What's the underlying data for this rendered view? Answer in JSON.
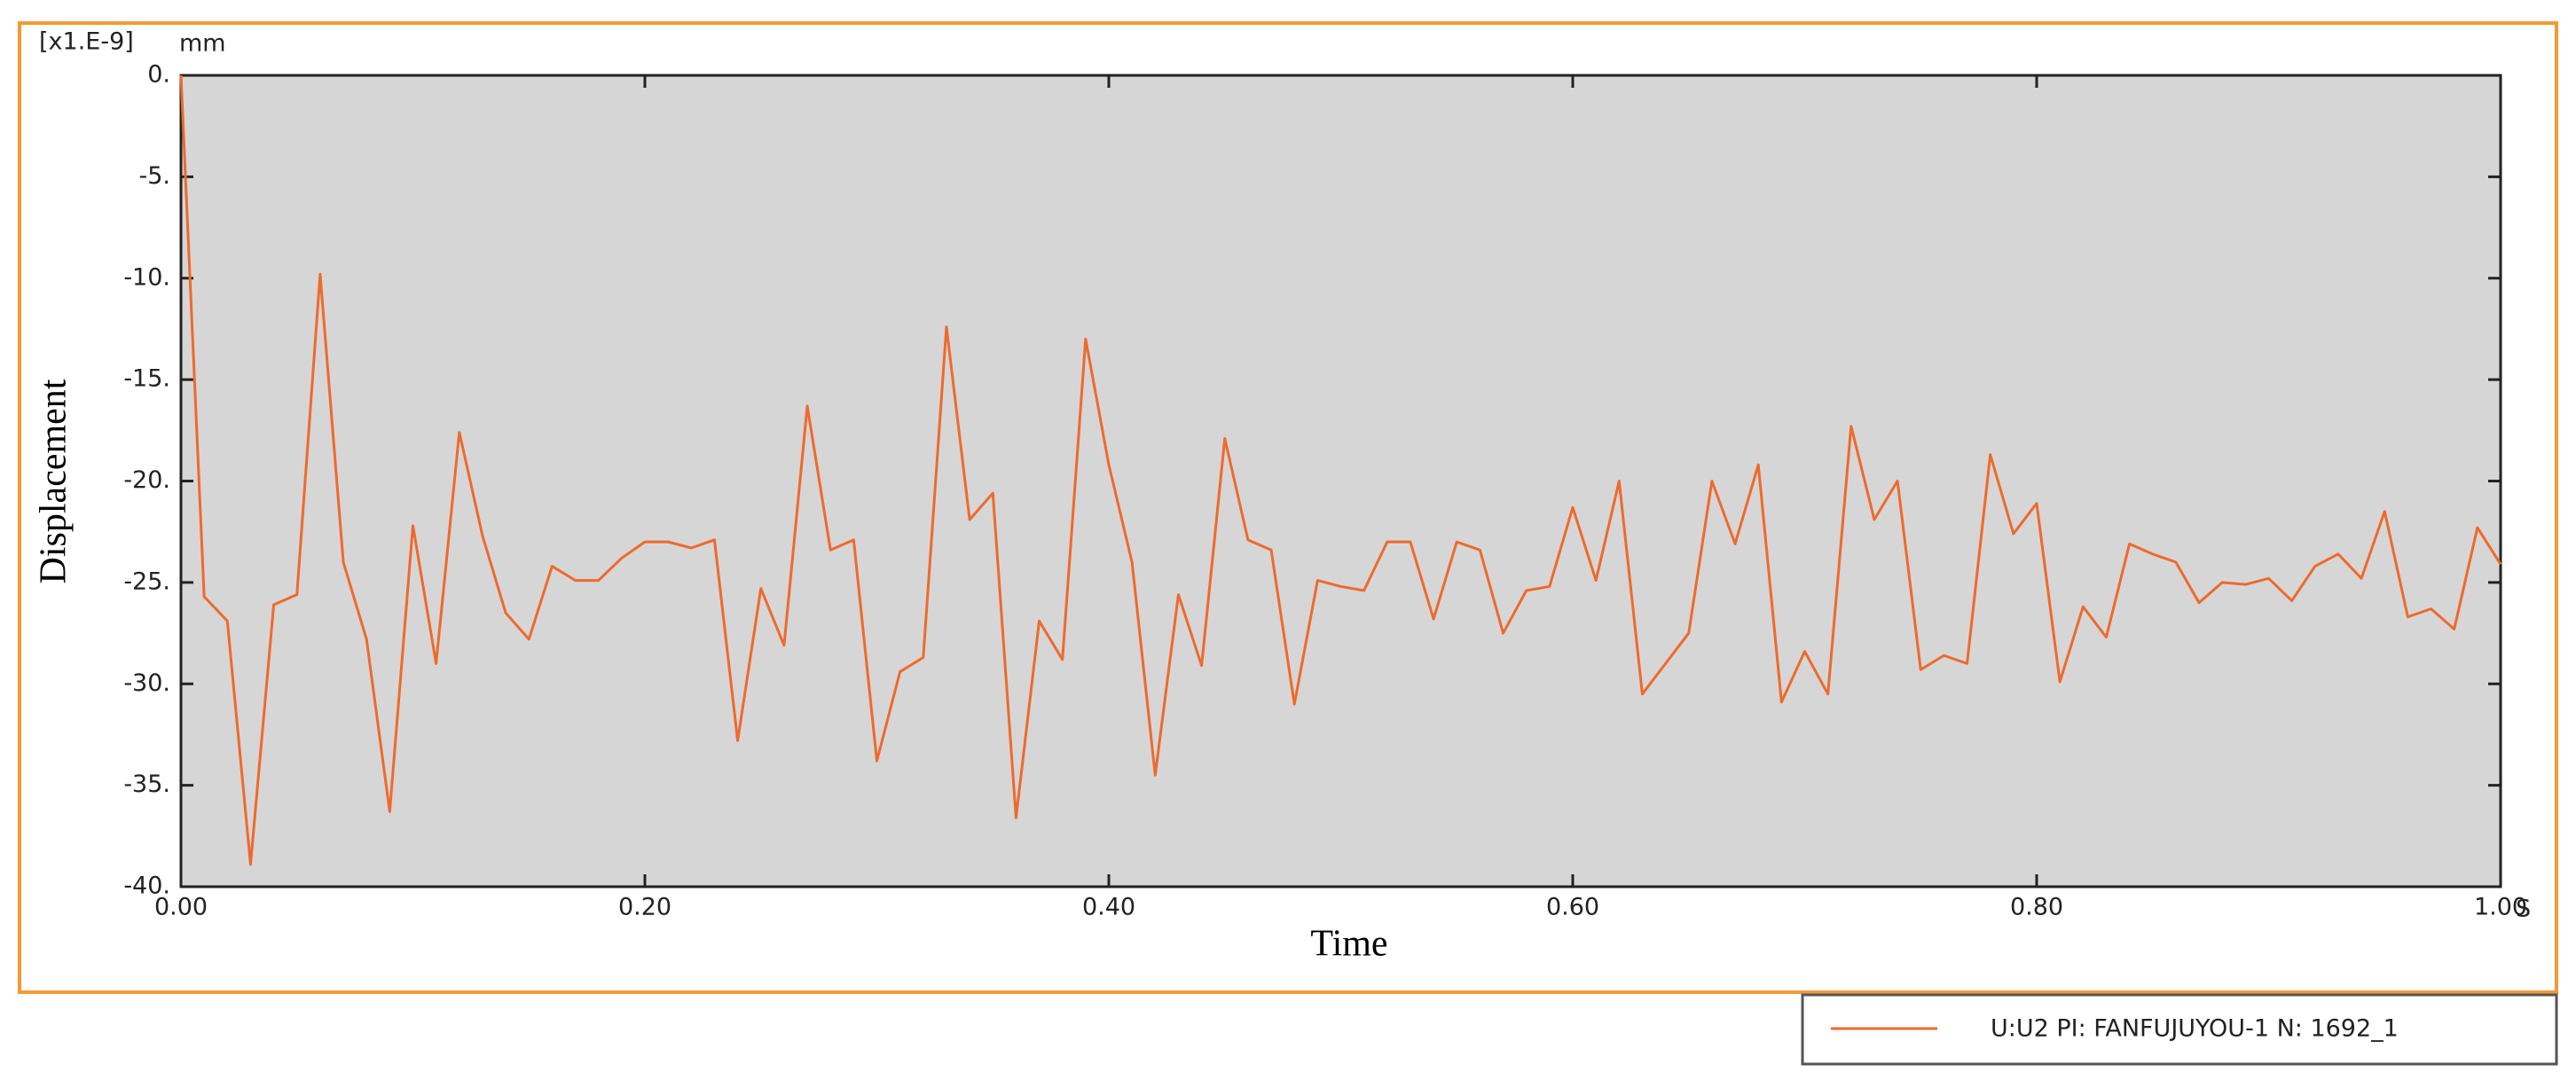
{
  "chart_data": {
    "type": "line",
    "unit_scale": "[x1.E-9]",
    "y_unit": "mm",
    "x_unit": "S",
    "ylabel": "Displacement",
    "xlabel": "Time",
    "xlim": [
      0,
      1
    ],
    "ylim": [
      -40,
      0
    ],
    "xticks": [
      {
        "value": 0,
        "label": "0.00"
      },
      {
        "value": 0.2,
        "label": "0.20"
      },
      {
        "value": 0.4,
        "label": "0.40"
      },
      {
        "value": 0.6,
        "label": "0.60"
      },
      {
        "value": 0.8,
        "label": "0.80"
      },
      {
        "value": 1,
        "label": "1.00"
      }
    ],
    "yticks": [
      {
        "value": 0,
        "label": "0."
      },
      {
        "value": -5,
        "label": "-5."
      },
      {
        "value": -10,
        "label": "-10."
      },
      {
        "value": -15,
        "label": "-15."
      },
      {
        "value": -20,
        "label": "-20."
      },
      {
        "value": -25,
        "label": "-25."
      },
      {
        "value": -30,
        "label": "-30."
      },
      {
        "value": -35,
        "label": "-35."
      },
      {
        "value": -40,
        "label": "-40."
      }
    ],
    "x": [
      0,
      0.01,
      0.02,
      0.03,
      0.04,
      0.05,
      0.06,
      0.07,
      0.08,
      0.09,
      0.1,
      0.11,
      0.12,
      0.13,
      0.14,
      0.15,
      0.16,
      0.17,
      0.18,
      0.19,
      0.2,
      0.21,
      0.22,
      0.23,
      0.24,
      0.25,
      0.26,
      0.27,
      0.28,
      0.29,
      0.3,
      0.31,
      0.32,
      0.33,
      0.34,
      0.35,
      0.36,
      0.37,
      0.38,
      0.39,
      0.4,
      0.41,
      0.42,
      0.43,
      0.44,
      0.45,
      0.46,
      0.47,
      0.48,
      0.49,
      0.5,
      0.51,
      0.52,
      0.53,
      0.54,
      0.55,
      0.56,
      0.57,
      0.58,
      0.59,
      0.6,
      0.61,
      0.62,
      0.63,
      0.64,
      0.65,
      0.66,
      0.67,
      0.68,
      0.69,
      0.7,
      0.71,
      0.72,
      0.73,
      0.74,
      0.75,
      0.76,
      0.77,
      0.78,
      0.79,
      0.8,
      0.81,
      0.82,
      0.83,
      0.84,
      0.85,
      0.86,
      0.87,
      0.88,
      0.89,
      0.9,
      0.91,
      0.92,
      0.93,
      0.94,
      0.95,
      0.96,
      0.97,
      0.98,
      0.99,
      1
    ],
    "series": [
      {
        "name": "U:U2 PI: FANFUJUYOU-1 N: 1692_1",
        "color": "#ee6a2c",
        "values": [
          0,
          -25.7,
          -26.9,
          -38.9,
          -26.1,
          -25.6,
          -9.8,
          -24,
          -27.8,
          -36.3,
          -22.2,
          -29,
          -17.6,
          -22.7,
          -26.5,
          -27.8,
          -24.2,
          -24.9,
          -24.9,
          -23.8,
          -23,
          -23,
          -23.3,
          -22.9,
          -32.8,
          -25.3,
          -28.1,
          -16.3,
          -23.4,
          -22.9,
          -33.8,
          -29.4,
          -28.7,
          -12.4,
          -21.9,
          -20.6,
          -36.6,
          -26.9,
          -28.8,
          -13,
          -19.2,
          -24,
          -34.5,
          -25.6,
          -29.1,
          -17.9,
          -22.9,
          -23.4,
          -31,
          -24.9,
          -25.2,
          -25.4,
          -23,
          -23,
          -26.8,
          -23,
          -23.4,
          -27.5,
          -25.4,
          -25.2,
          -21.3,
          -24.9,
          -20,
          -30.5,
          -29,
          -27.5,
          -20,
          -23.1,
          -19.2,
          -30.9,
          -28.4,
          -30.5,
          -17.3,
          -21.9,
          -20,
          -29.3,
          -28.6,
          -29,
          -18.7,
          -22.6,
          -21.1,
          -29.9,
          -26.2,
          -27.7,
          -23.1,
          -23.6,
          -24,
          -26,
          -25,
          -25.1,
          -24.8,
          -25.9,
          -24.2,
          -23.6,
          -24.8,
          -21.5,
          -26.7,
          -26.3,
          -27.3,
          -22.3,
          -24.1
        ]
      }
    ]
  }
}
